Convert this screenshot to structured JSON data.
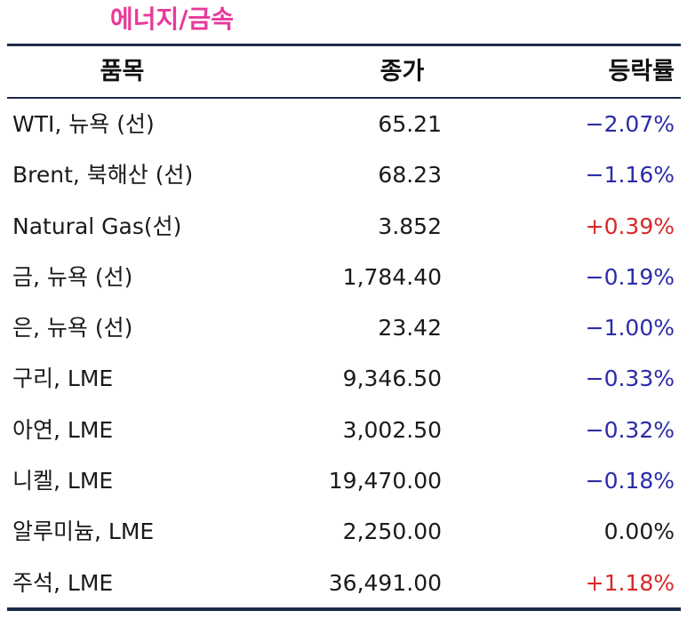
{
  "title": "에너지/금속",
  "headers": {
    "name": "품목",
    "close": "종가",
    "change": "등락률"
  },
  "colors": {
    "title": "#e8399b",
    "negative": "#2b2ba8",
    "positive": "#d8282a",
    "rule": "#1e2a4a"
  },
  "rows": [
    {
      "name": "WTI, 뉴욕 (선)",
      "close": "65.21",
      "change": "−2.07%",
      "dir": "neg"
    },
    {
      "name": "Brent, 북해산 (선)",
      "close": "68.23",
      "change": "−1.16%",
      "dir": "neg"
    },
    {
      "name": "Natural Gas(선)",
      "close": "3.852",
      "change": "+0.39%",
      "dir": "pos"
    },
    {
      "name": "금, 뉴욕  (선)",
      "close": "1,784.40",
      "change": "−0.19%",
      "dir": "neg"
    },
    {
      "name": "은, 뉴욕  (선)",
      "close": "23.42",
      "change": "−1.00%",
      "dir": "neg"
    },
    {
      "name": "구리, LME",
      "close": "9,346.50",
      "change": "−0.33%",
      "dir": "neg"
    },
    {
      "name": "아연, LME",
      "close": "3,002.50",
      "change": "−0.32%",
      "dir": "neg"
    },
    {
      "name": "니켈, LME",
      "close": "19,470.00",
      "change": "−0.18%",
      "dir": "neg"
    },
    {
      "name": "알루미늄, LME",
      "close": "2,250.00",
      "change": "0.00%",
      "dir": "zero"
    },
    {
      "name": "주석, LME",
      "close": "36,491.00",
      "change": "+1.18%",
      "dir": "pos"
    }
  ]
}
